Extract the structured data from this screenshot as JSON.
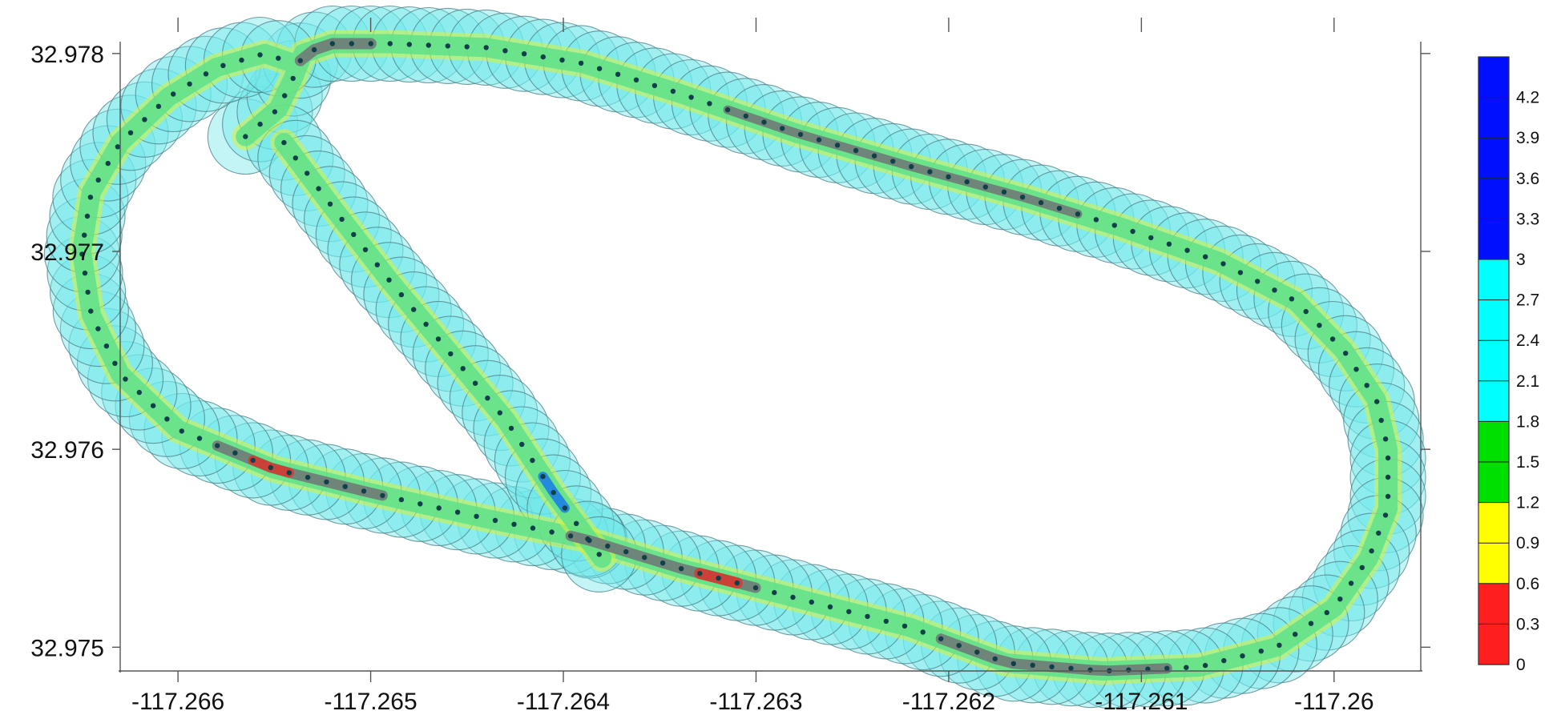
{
  "chart_data": {
    "type": "scatter",
    "title": "",
    "xlabel": "",
    "ylabel": "",
    "xlim": [
      -117.2663,
      -117.25955
    ],
    "ylim": [
      32.97488,
      32.97806
    ],
    "x_ticks": [
      {
        "value": -117.266,
        "label": "-117.266"
      },
      {
        "value": -117.265,
        "label": "-117.265"
      },
      {
        "value": -117.264,
        "label": "-117.264"
      },
      {
        "value": -117.263,
        "label": "-117.263"
      },
      {
        "value": -117.262,
        "label": "-117.262"
      },
      {
        "value": -117.261,
        "label": "-117.261"
      },
      {
        "value": -117.26,
        "label": "-117.26"
      }
    ],
    "y_ticks": [
      {
        "value": 32.978,
        "label": "32.978"
      },
      {
        "value": 32.977,
        "label": "32.977"
      },
      {
        "value": 32.976,
        "label": "32.976"
      },
      {
        "value": 32.975,
        "label": "32.975"
      }
    ],
    "grid": false,
    "track_path": [
      [
        -117.26565,
        32.97758
      ],
      [
        -117.26548,
        32.97772
      ],
      [
        -117.2654,
        32.97788
      ],
      [
        -117.26535,
        32.978
      ],
      [
        -117.2652,
        32.97805
      ],
      [
        -117.2649,
        32.97805
      ],
      [
        -117.2644,
        32.97803
      ],
      [
        -117.2639,
        32.97795
      ],
      [
        -117.2634,
        32.9778
      ],
      [
        -117.2628,
        32.9776
      ],
      [
        -117.2622,
        32.97743
      ],
      [
        -117.2616,
        32.97727
      ],
      [
        -117.2611,
        32.97712
      ],
      [
        -117.2606,
        32.97695
      ],
      [
        -117.2602,
        32.97675
      ],
      [
        -117.25995,
        32.9765
      ],
      [
        -117.25978,
        32.97625
      ],
      [
        -117.25972,
        32.976
      ],
      [
        -117.25972,
        32.9757
      ],
      [
        -117.25982,
        32.97545
      ],
      [
        -117.26,
        32.9752
      ],
      [
        -117.2603,
        32.975
      ],
      [
        -117.2607,
        32.9749
      ],
      [
        -117.2612,
        32.97488
      ],
      [
        -117.2617,
        32.97492
      ],
      [
        -117.2622,
        32.9751
      ],
      [
        -117.2628,
        32.97525
      ],
      [
        -117.2634,
        32.9754
      ],
      [
        -117.2639,
        32.97555
      ],
      [
        -117.2644,
        32.97565
      ],
      [
        -117.265,
        32.97578
      ],
      [
        -117.2655,
        32.9759
      ],
      [
        -117.266,
        32.9761
      ],
      [
        -117.2663,
        32.97638
      ],
      [
        -117.26645,
        32.97668
      ],
      [
        -117.2665,
        32.977
      ],
      [
        -117.26645,
        32.9773
      ],
      [
        -117.2663,
        32.97755
      ],
      [
        -117.26605,
        32.97778
      ],
      [
        -117.2658,
        32.97793
      ],
      [
        -117.26555,
        32.978
      ],
      [
        -117.2654,
        32.97795
      ]
    ],
    "branch_path": [
      [
        -117.26545,
        32.97755
      ],
      [
        -117.26518,
        32.9772
      ],
      [
        -117.2649,
        32.97685
      ],
      [
        -117.2646,
        32.9765
      ],
      [
        -117.2643,
        32.97615
      ],
      [
        -117.26405,
        32.97578
      ],
      [
        -117.2638,
        32.97545
      ]
    ],
    "colorbar": {
      "min": 0,
      "max": 4.5,
      "tick_labels": [
        "0",
        "0.3",
        "0.6",
        "0.9",
        "1.2",
        "1.5",
        "1.8",
        "2.1",
        "2.4",
        "2.7",
        "3",
        "3.3",
        "3.6",
        "3.9",
        "4.2"
      ],
      "tick_values": [
        0,
        0.3,
        0.6,
        0.9,
        1.2,
        1.5,
        1.8,
        2.1,
        2.4,
        2.7,
        3,
        3.3,
        3.6,
        3.9,
        4.2
      ],
      "bands": [
        {
          "from": 0,
          "to": 0.6,
          "color": "#ff1f1f"
        },
        {
          "from": 0.6,
          "to": 1.2,
          "color": "#ffff00"
        },
        {
          "from": 1.2,
          "to": 1.8,
          "color": "#00e000"
        },
        {
          "from": 1.8,
          "to": 3.0,
          "color": "#00ffff"
        },
        {
          "from": 3.0,
          "to": 4.5,
          "color": "#0010ff"
        }
      ]
    },
    "colors": {
      "circle_fill": "#6fe7ea",
      "circle_stroke": "#4a7e84",
      "swath_fill": "#5ee08a",
      "swath_edge": "#d8f23a",
      "dark_patch": "#707a78",
      "red_patch": "#d43a30",
      "blue_patch": "#1c7fe6",
      "point_color": "#12404a"
    }
  }
}
